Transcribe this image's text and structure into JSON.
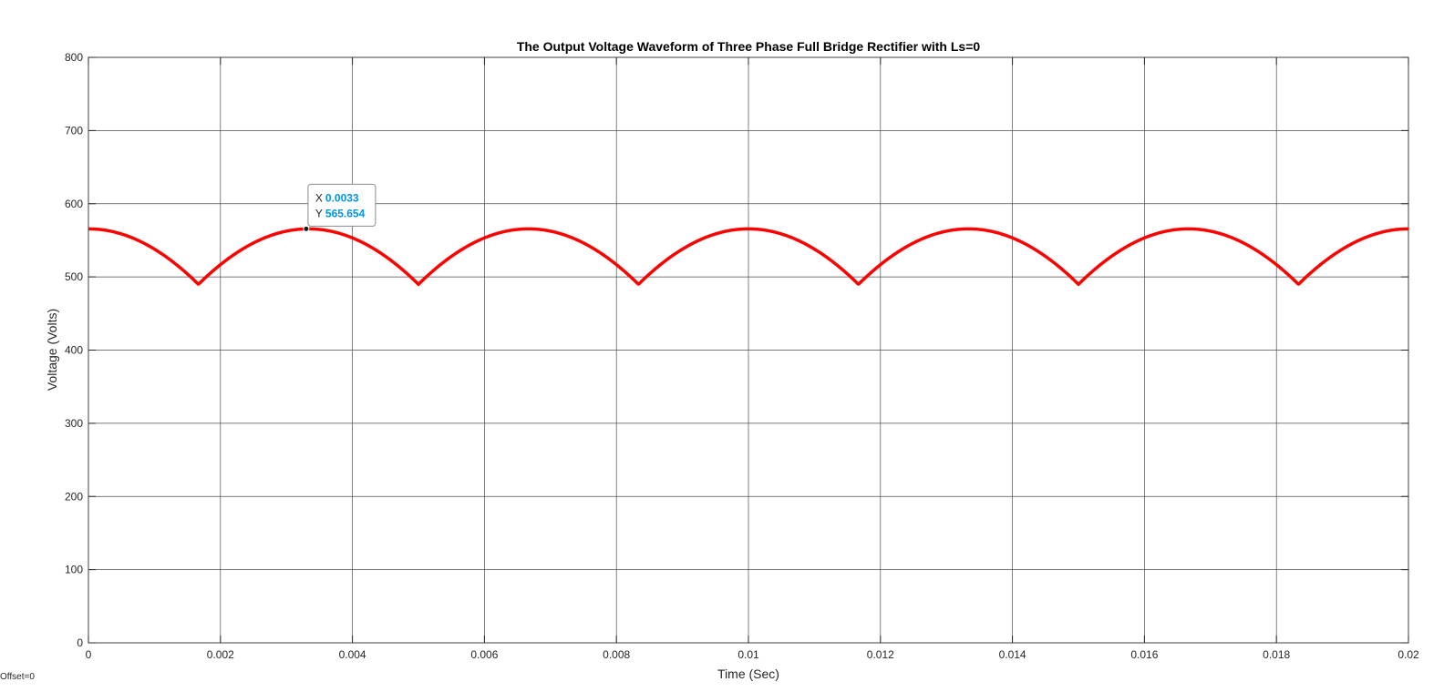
{
  "chart_data": {
    "type": "line",
    "title": "The Output Voltage Waveform of Three Phase Full Bridge Rectifier with Ls=0",
    "xlabel": "Time (Sec)",
    "ylabel": "Voltage (Volts)",
    "xlim": [
      0,
      0.02
    ],
    "ylim": [
      0,
      800
    ],
    "xticks": [
      0,
      0.002,
      0.004,
      0.006,
      0.008,
      0.01,
      0.012,
      0.014,
      0.016,
      0.018,
      0.02
    ],
    "xtick_labels": [
      "0",
      "0.002",
      "0.004",
      "0.006",
      "0.008",
      "0.01",
      "0.012",
      "0.014",
      "0.016",
      "0.018",
      "0.02"
    ],
    "yticks": [
      0,
      100,
      200,
      300,
      400,
      500,
      600,
      700,
      800
    ],
    "ytick_labels": [
      "0",
      "100",
      "200",
      "300",
      "400",
      "500",
      "600",
      "700",
      "800"
    ],
    "grid": true,
    "series": [
      {
        "color": "#ff0000",
        "peak": 565.654,
        "valley": 490,
        "x": [
          0,
          0.00167,
          0.00333,
          0.005,
          0.00667,
          0.00833,
          0.01,
          0.01167,
          0.01333,
          0.015,
          0.01667,
          0.01833,
          0.02
        ],
        "y": [
          565.654,
          490,
          565.654,
          490,
          565.654,
          490,
          565.654,
          490,
          565.654,
          490,
          565.654,
          490,
          565.654
        ]
      }
    ],
    "datatip": {
      "x_label": "X",
      "y_label": "Y",
      "x_value": "0.0033",
      "y_value": "565.654",
      "x": 0.0033,
      "y": 565.654,
      "value_color": "#0095e6"
    }
  },
  "footer": {
    "offset_text": "Offset=0"
  }
}
